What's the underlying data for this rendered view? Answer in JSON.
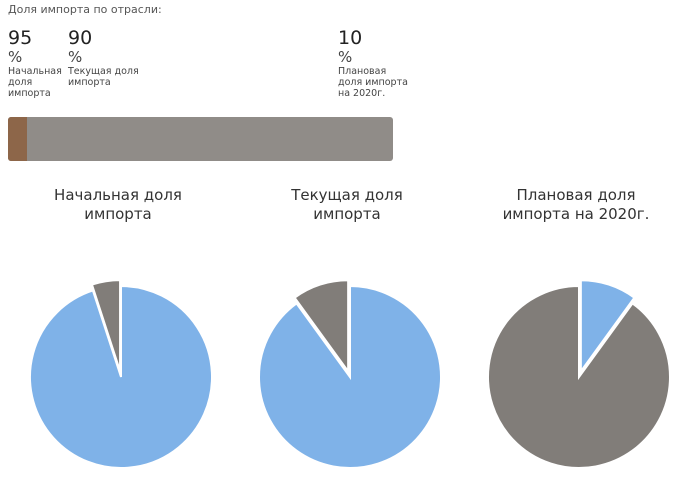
{
  "header": {
    "title": "Доля импорта по отрасли:"
  },
  "stats": [
    {
      "value": "95",
      "unit": "%",
      "label": "Начальная доля импорта"
    },
    {
      "value": "90",
      "unit": "%",
      "label": "Текущая доля импорта"
    },
    {
      "value": "10",
      "unit": "%",
      "label": "Плановая доля импорта на 2020г."
    }
  ],
  "progress": {
    "start_fraction": 0.05,
    "colors": {
      "fill": "#8d6649",
      "track": "#908c88"
    }
  },
  "colors": {
    "import": "#7fb2e8",
    "local": "#817d79"
  },
  "chart_data": [
    {
      "type": "pie",
      "title": "Начальная доля\nимпорта",
      "slices": [
        {
          "label": "import",
          "value": 95
        },
        {
          "label": "other",
          "value": 5
        }
      ]
    },
    {
      "type": "pie",
      "title": "Текущая доля\nимпорта",
      "slices": [
        {
          "label": "import",
          "value": 90
        },
        {
          "label": "other",
          "value": 10
        }
      ]
    },
    {
      "type": "pie",
      "title": "Плановая доля\nимпорта на 2020г.",
      "slices": [
        {
          "label": "import",
          "value": 10
        },
        {
          "label": "other",
          "value": 90
        }
      ]
    }
  ]
}
